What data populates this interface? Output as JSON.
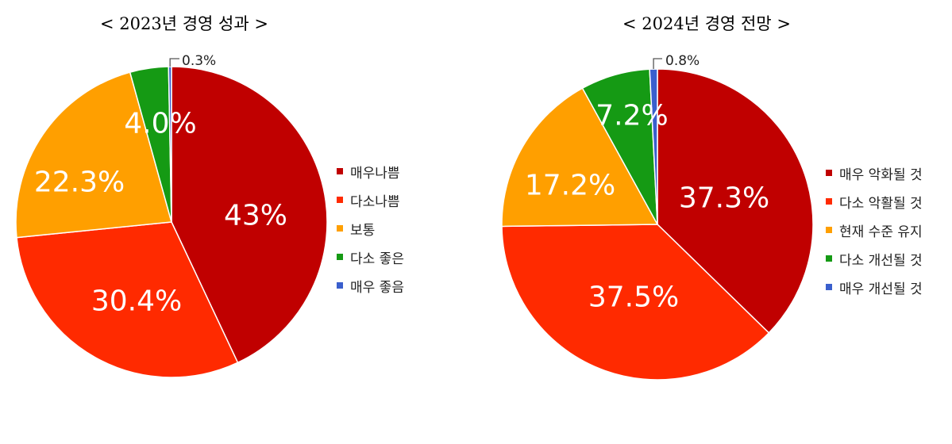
{
  "chart_data": [
    {
      "type": "pie",
      "title": "< 2023년 경영 성과 >",
      "categories": [
        "매우나쁨",
        "다소나쁨",
        "보통",
        "다소 좋은",
        "매우 좋음"
      ],
      "values": [
        43,
        30.4,
        22.3,
        4.0,
        0.3
      ],
      "labels": [
        "43%",
        "30.4%",
        "22.3%",
        "4.0%",
        "0.3%"
      ],
      "colors": [
        "#c00000",
        "#ff2a00",
        "#ff9f00",
        "#159a14",
        "#3a5fcd"
      ],
      "legend_position": "right"
    },
    {
      "type": "pie",
      "title": "< 2024년 경영 전망 >",
      "categories": [
        "매우 악화될 것",
        "다소 악활될 것",
        "현재 수준 유지",
        "다소 개선될 것",
        "매우 개선될 것"
      ],
      "values": [
        37.3,
        37.5,
        17.2,
        7.2,
        0.8
      ],
      "labels": [
        "37.3%",
        "37.5%",
        "17.2%",
        "7.2%",
        "0.8%"
      ],
      "colors": [
        "#c00000",
        "#ff2a00",
        "#ff9f00",
        "#159a14",
        "#3a5fcd"
      ],
      "legend_position": "right"
    }
  ]
}
